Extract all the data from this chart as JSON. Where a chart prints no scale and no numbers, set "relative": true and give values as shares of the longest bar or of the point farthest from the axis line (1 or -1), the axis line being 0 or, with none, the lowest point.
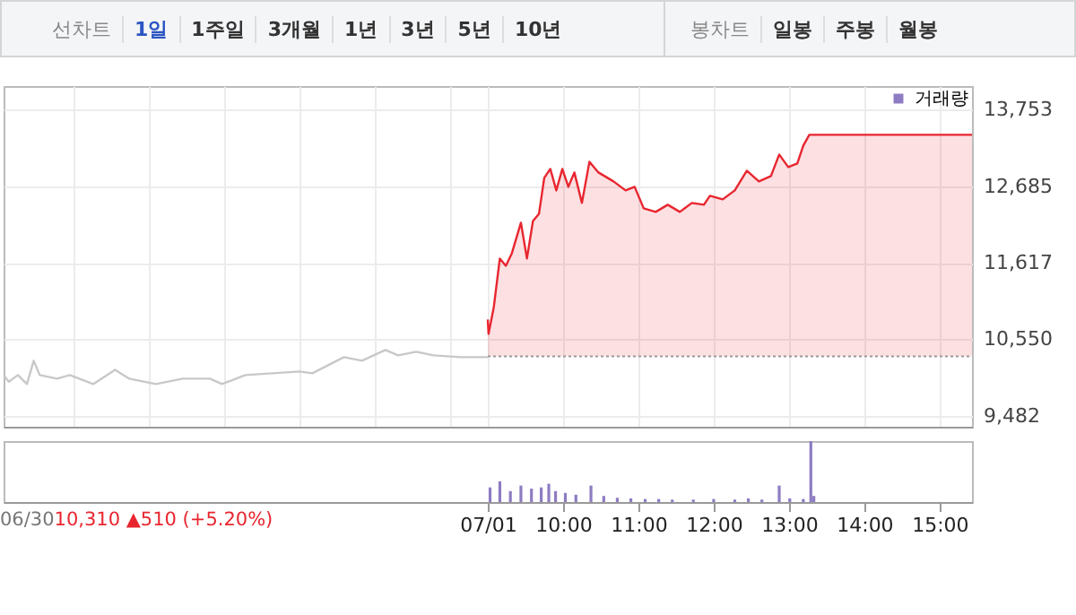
{
  "chart_data": [
    {
      "type": "other",
      "annotations": [
        "선차트",
        "1일",
        "1주일",
        "3개월",
        "1년",
        "3년",
        "5년",
        "10년"
      ]
    },
    {
      "type": "other",
      "annotations": [
        "봉차트",
        "일봉",
        "주봉",
        "월봉"
      ]
    },
    {
      "type": "line",
      "xlim": [
        2.57,
        15.43
      ],
      "ylim": [
        9330,
        14080
      ],
      "xticks": [
        3.5,
        4.5,
        5.5,
        6.5,
        7.5,
        8.5,
        9,
        10,
        11,
        12,
        13,
        14,
        15
      ],
      "yticks": [
        {
          "value": 9482,
          "label": "9,482"
        },
        {
          "value": 10550,
          "label": "10,550"
        },
        {
          "value": 11617,
          "label": "11,617"
        },
        {
          "value": 12685,
          "label": "12,685"
        },
        {
          "value": 13753,
          "label": "13,753"
        }
      ],
      "tick_labels": "y",
      "grid": true,
      "ref_lines": [
        {
          "axis": "y",
          "value": 10310,
          "color": "#999999",
          "line_style": "dotted"
        }
      ],
      "series": [
        {
          "type": "line",
          "color": "#c8c8c8",
          "x": [
            2.57,
            2.64,
            2.76,
            2.88,
            2.97,
            3.05,
            3.28,
            3.45,
            3.76,
            4.05,
            4.24,
            4.59,
            4.95,
            5.31,
            5.47,
            5.78,
            6.14,
            6.5,
            6.67,
            7.09,
            7.33,
            7.64,
            7.81,
            8.05,
            8.28,
            8.64,
            9.0
          ],
          "values": [
            10050,
            9958,
            10050,
            9925,
            10250,
            10050,
            10000,
            10050,
            9925,
            10125,
            10000,
            9925,
            10000,
            10000,
            9925,
            10050,
            10075,
            10100,
            10075,
            10300,
            10250,
            10400,
            10325,
            10375,
            10325,
            10300,
            10300
          ]
        },
        {
          "type": "area",
          "color": "#e8262f",
          "x": [
            9.0,
            9.01,
            9.08,
            9.16,
            9.24,
            9.32,
            9.44,
            9.52,
            9.6,
            9.68,
            9.75,
            9.83,
            9.91,
            9.99,
            10.07,
            10.15,
            10.25,
            10.35,
            10.47,
            10.67,
            10.83,
            10.95,
            11.07,
            11.23,
            11.39,
            11.55,
            11.71,
            11.87,
            11.95,
            12.12,
            12.28,
            12.44,
            12.6,
            12.76,
            12.87,
            12.99,
            13.11,
            13.19,
            13.27,
            15.43
          ],
          "values": [
            10825,
            10625,
            11000,
            11675,
            11575,
            11750,
            12175,
            11675,
            12200,
            12300,
            12800,
            12925,
            12625,
            12925,
            12675,
            12875,
            12450,
            13025,
            12875,
            12750,
            12625,
            12675,
            12375,
            12325,
            12425,
            12325,
            12450,
            12425,
            12550,
            12500,
            12625,
            12900,
            12750,
            12825,
            13125,
            12950,
            13000,
            13250,
            13400,
            13400
          ]
        }
      ]
    },
    {
      "type": "bar",
      "relative": true,
      "xlim": [
        2.57,
        15.43
      ],
      "tick_labels": "x",
      "legend": "top right",
      "xticks": [
        {
          "value": 9,
          "label": "07/01"
        },
        {
          "value": 10,
          "label": "10:00"
        },
        {
          "value": 11,
          "label": "11:00"
        },
        {
          "value": 12,
          "label": "12:00"
        },
        {
          "value": 13,
          "label": "13:00"
        },
        {
          "value": 14,
          "label": "14:00"
        },
        {
          "value": 15,
          "label": "15:00"
        }
      ],
      "annotations": [
        "06/30",
        "10,310 ▲510 (+5.20%)"
      ],
      "series": [
        {
          "name": "거래량",
          "color": "#8e7cc3",
          "x": [
            9.03,
            9.16,
            9.3,
            9.44,
            9.58,
            9.71,
            9.81,
            9.9,
            10.03,
            10.17,
            10.37,
            10.54,
            10.72,
            10.9,
            11.09,
            11.27,
            11.45,
            11.73,
            12.0,
            12.28,
            12.46,
            12.64,
            12.87,
            13.01,
            13.19,
            13.29,
            13.33
          ],
          "values": [
            0.24,
            0.34,
            0.18,
            0.27,
            0.22,
            0.24,
            0.3,
            0.18,
            0.15,
            0.12,
            0.27,
            0.1,
            0.07,
            0.06,
            0.05,
            0.05,
            0.04,
            0.04,
            0.05,
            0.04,
            0.06,
            0.04,
            0.27,
            0.06,
            0.05,
            1,
            0.1
          ]
        }
      ]
    }
  ]
}
